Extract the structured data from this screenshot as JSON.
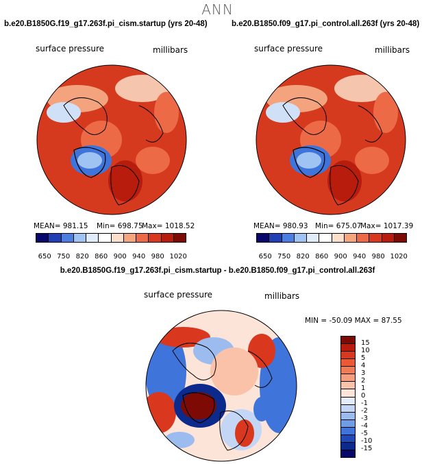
{
  "page_title": "ANN",
  "panel_left": {
    "case": "b.e20.B1850G.f19_g17.263f.pi_cism.startup (yrs 20-48)",
    "variable": "surface pressure",
    "units": "millibars",
    "stats": {
      "mean": "MEAN= 981.15",
      "min": "Min= 698.75",
      "max": "Max= 1018.52"
    }
  },
  "panel_right": {
    "case": "b.e20.B1850.f09_g17.pi_control.all.263f (yrs 20-48)",
    "variable": "surface pressure",
    "units": "millibars",
    "stats": {
      "mean": "MEAN= 980.93",
      "min": "Min= 675.07",
      "max": "Max= 1017.39"
    }
  },
  "abs_colorbar": {
    "ticks": [
      "650",
      "750",
      "820",
      "860",
      "900",
      "940",
      "980",
      "1020"
    ],
    "colors": [
      "#08086b",
      "#1f3fb5",
      "#4a7ee0",
      "#9fc3f2",
      "#e0ecfa",
      "#ffffff",
      "#fde0cc",
      "#f6a67d",
      "#ec6a45",
      "#d9381f",
      "#b71c0c",
      "#7d0a05"
    ]
  },
  "panel_diff": {
    "case": "b.e20.B1850G.f19_g17.263f.pi_cism.startup - b.e20.B1850.f09_g17.pi_control.all.263f",
    "variable": "surface pressure",
    "units": "millibars",
    "minmax": "MIN = -50.09 MAX =  87.55"
  },
  "diff_colorbar": {
    "ticks": [
      "15",
      "10",
      "5",
      "4",
      "3",
      "2",
      "1",
      "0",
      "-1",
      "-2",
      "-3",
      "-4",
      "-5",
      "-10",
      "-15"
    ],
    "colors": [
      "#7d0a05",
      "#b71c0c",
      "#d9381f",
      "#ec5a35",
      "#f07b55",
      "#f59e7e",
      "#fac3a9",
      "#fde4d8",
      "#e3edfb",
      "#c3d6f6",
      "#9cbcf0",
      "#6f9ce6",
      "#3f74da",
      "#1f48b8",
      "#0b2a8c",
      "#08086b"
    ]
  }
}
